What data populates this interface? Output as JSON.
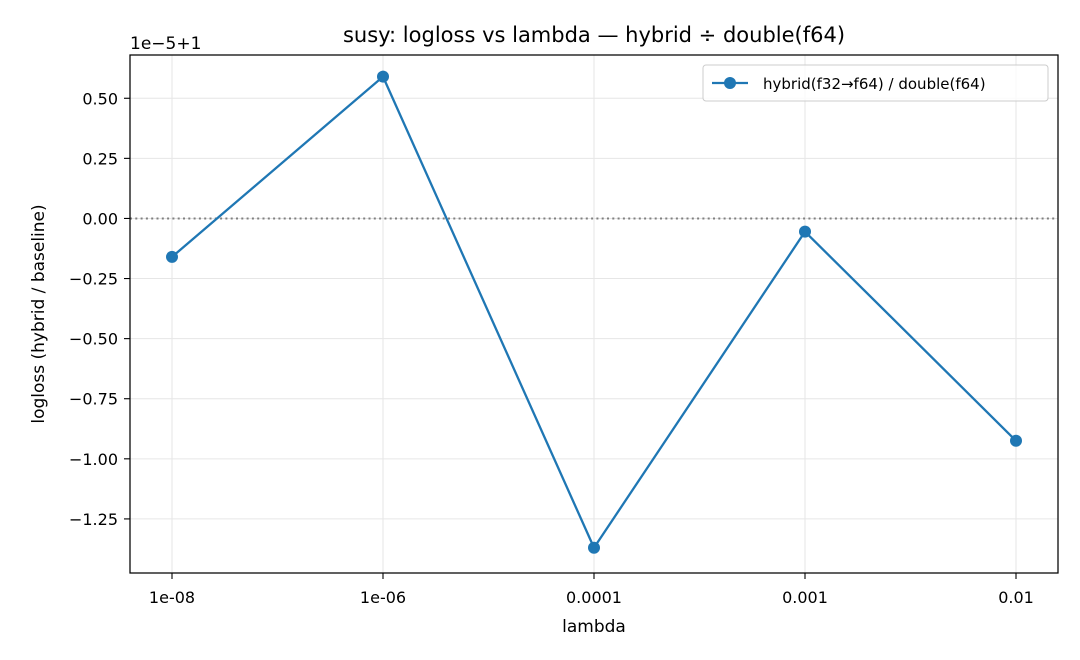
{
  "chart_data": {
    "type": "line",
    "title": "susy: logloss vs lambda — hybrid ÷ double(f64)",
    "xlabel": "lambda",
    "ylabel": "logloss (hybrid / baseline)",
    "y_offset_label": "1e−5+1",
    "categories": [
      "1e-08",
      "1e-06",
      "0.0001",
      "0.001",
      "0.01"
    ],
    "series": [
      {
        "name": "hybrid(f32→f64) / double(f64)",
        "color": "#1f77b4",
        "marker": "circle",
        "values": [
          -0.16,
          0.59,
          -1.37,
          -0.055,
          -0.925
        ]
      }
    ],
    "y_unit_scale": "1e-5, offset +1",
    "ylim": [
      -1.475,
      0.68
    ],
    "yticks": [
      0.5,
      0.25,
      0.0,
      -0.25,
      -0.5,
      -0.75,
      -1.0,
      -1.25
    ],
    "ytick_labels": [
      "0.50",
      "0.25",
      "0.00",
      "−0.25",
      "−0.50",
      "−0.75",
      "−1.00",
      "−1.25"
    ],
    "reference_line": {
      "y": 0.0,
      "style": "dotted",
      "color": "#808080"
    },
    "grid": true,
    "legend_position": "top-right"
  }
}
